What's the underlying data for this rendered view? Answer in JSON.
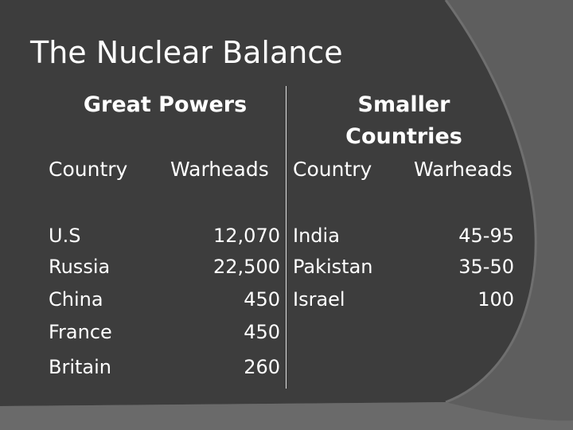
{
  "slide": {
    "title": "The Nuclear Balance"
  },
  "great_powers": {
    "heading": "Great Powers",
    "col_country": "Country",
    "col_warheads": "Warheads",
    "rows": [
      {
        "country": "U.S",
        "warheads": "12,070"
      },
      {
        "country": "Russia",
        "warheads": "22,500"
      },
      {
        "country": "China",
        "warheads": "450"
      },
      {
        "country": "France",
        "warheads": "450"
      },
      {
        "country": "Britain",
        "warheads": "260"
      }
    ]
  },
  "smaller_countries": {
    "heading_line1": "Smaller",
    "heading_line2": "Countries",
    "col_country": "Country",
    "col_warheads": "Warheads",
    "rows": [
      {
        "country": "India",
        "warheads": "45-95"
      },
      {
        "country": "Pakistan",
        "warheads": "35-50"
      },
      {
        "country": "Israel",
        "warheads": "100"
      }
    ]
  },
  "colors": {
    "background_dark": "#3b3b3b",
    "background_mid": "#5b5b5b",
    "text": "#ffffff"
  }
}
